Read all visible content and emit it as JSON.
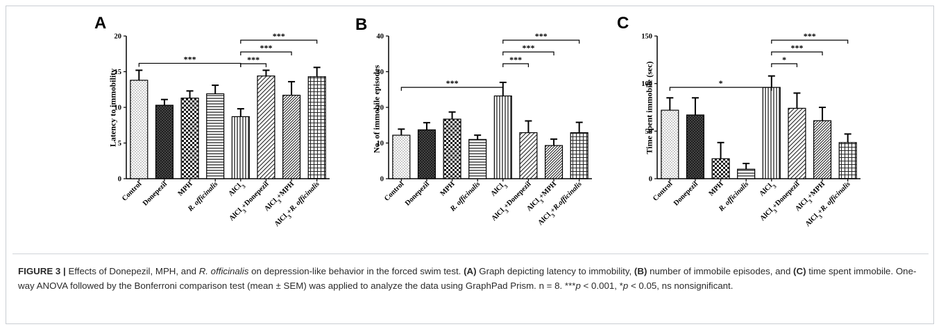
{
  "chart_data": [
    {
      "type": "bar",
      "panel": "A",
      "ylabel": "Latency to immobility",
      "ylim": [
        0,
        20
      ],
      "yticks": [
        "0",
        "5",
        "10",
        "15",
        "20"
      ],
      "categories": [
        "Control",
        "Donepezil",
        "MPH",
        "R. officinalis",
        "AlCl3",
        "AlCl3+Donepezil",
        "AlCl3+MPH",
        "AlCl3+R. officinalis"
      ],
      "values": [
        13.8,
        10.3,
        11.3,
        11.9,
        8.7,
        14.4,
        11.7,
        14.3
      ],
      "errors": [
        1.4,
        0.8,
        1.0,
        1.2,
        1.1,
        0.8,
        1.9,
        1.3
      ],
      "significance": [
        {
          "from": "Control",
          "to": "AlCl3",
          "label": "***"
        },
        {
          "from": "AlCl3",
          "to": "AlCl3+Donepezil",
          "label": "***"
        },
        {
          "from": "AlCl3",
          "to": "AlCl3+MPH",
          "label": "***"
        },
        {
          "from": "AlCl3",
          "to": "AlCl3+R. officinalis",
          "label": "***"
        }
      ]
    },
    {
      "type": "bar",
      "panel": "B",
      "ylabel": "No. of immobile episodes",
      "ylim": [
        0,
        40
      ],
      "yticks": [
        "0",
        "10",
        "20",
        "30",
        "40"
      ],
      "categories": [
        "Control",
        "Donepezil",
        "MPH",
        "R. officinalis",
        "AlCl3",
        "AlCl3+Donepezil",
        "AlCl3+MPH",
        "AlCl3+R.officinalis"
      ],
      "values": [
        12.2,
        13.7,
        16.7,
        11.0,
        23.2,
        12.9,
        9.3,
        12.9
      ],
      "errors": [
        1.7,
        2.0,
        2.0,
        1.2,
        3.8,
        3.3,
        1.8,
        2.9
      ],
      "significance": [
        {
          "from": "Control",
          "to": "AlCl3",
          "label": "***"
        },
        {
          "from": "AlCl3",
          "to": "AlCl3+Donepezil",
          "label": "***"
        },
        {
          "from": "AlCl3",
          "to": "AlCl3+MPH",
          "label": "***"
        },
        {
          "from": "AlCl3",
          "to": "AlCl3+R.officinalis",
          "label": "***"
        }
      ]
    },
    {
      "type": "bar",
      "panel": "C",
      "ylabel": "Time spent immobile (sec)",
      "ylim": [
        0,
        150
      ],
      "yticks": [
        "0",
        "50",
        "100",
        "150"
      ],
      "categories": [
        "Control",
        "Donepezil",
        "MPH",
        "R. officinalis",
        "AlCl3",
        "AlCl3+Donepezil",
        "AlCl3+MPH",
        "AlCl3+R. officinalis"
      ],
      "values": [
        72,
        67,
        21,
        10,
        96,
        74,
        61,
        38
      ],
      "errors": [
        13,
        18,
        17,
        6,
        12,
        16,
        14,
        9
      ],
      "significance": [
        {
          "from": "Control",
          "to": "AlCl3",
          "label": "*"
        },
        {
          "from": "AlCl3",
          "to": "AlCl3+Donepezil",
          "label": "*"
        },
        {
          "from": "AlCl3",
          "to": "AlCl3+MPH",
          "label": "***"
        },
        {
          "from": "AlCl3",
          "to": "AlCl3+R. officinalis",
          "label": "***"
        }
      ]
    }
  ],
  "patterns": [
    "dots",
    "dark-cross",
    "checker",
    "horizontal",
    "vertical",
    "diagonal",
    "diagonal-dense",
    "grid"
  ],
  "caption": {
    "figure_label": "FIGURE 3",
    "separator": "|",
    "t1": " Effects of Donepezil, MPH, and ",
    "t2": "R. officinalis",
    "t3": " on depression-like behavior in the forced swim test. ",
    "t4": "(A)",
    "t5": " Graph depicting latency to immobility, ",
    "t6": "(B)",
    "t7": " number of immobile episodes, and ",
    "t8": "(C)",
    "t9": " time spent immobile. One-way ANOVA followed by the Bonferroni comparison test (mean ± SEM) was applied to analyze the data using GraphPad Prism. n = 8. ***",
    "t10": "p",
    "t11": " < 0.001, *",
    "t12": "p",
    "t13": " < 0.05, ns nonsignificant."
  }
}
